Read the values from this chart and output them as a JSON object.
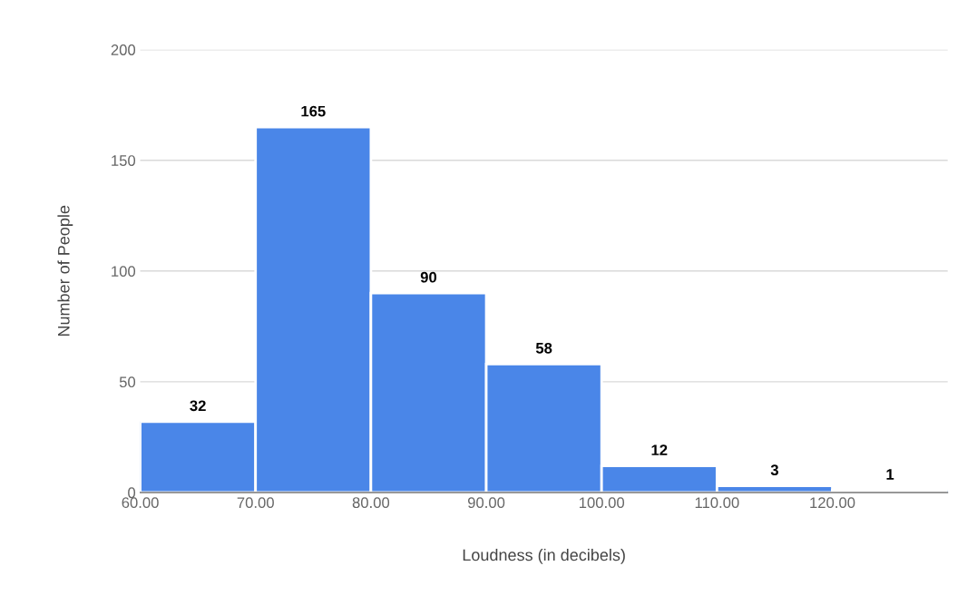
{
  "chart_data": {
    "type": "histogram",
    "xlabel": "Loudness (in decibels)",
    "ylabel": "Number of People",
    "bins": [
      60,
      70,
      80,
      90,
      100,
      110,
      120,
      130
    ],
    "values": [
      32,
      165,
      90,
      58,
      12,
      3,
      1
    ],
    "color": "#4a86e8",
    "xlim": [
      60,
      130
    ],
    "xticks": [
      {
        "value": 60,
        "label": "60.00"
      },
      {
        "value": 70,
        "label": "70.00"
      },
      {
        "value": 80,
        "label": "80.00"
      },
      {
        "value": 90,
        "label": "90.00"
      },
      {
        "value": 100,
        "label": "100.00"
      },
      {
        "value": 110,
        "label": "110.00"
      },
      {
        "value": 120,
        "label": "120.00"
      }
    ],
    "ylim": [
      0,
      200
    ],
    "yticks": [
      0,
      50,
      100,
      150,
      200
    ],
    "grid": "y",
    "data_labels": true
  }
}
